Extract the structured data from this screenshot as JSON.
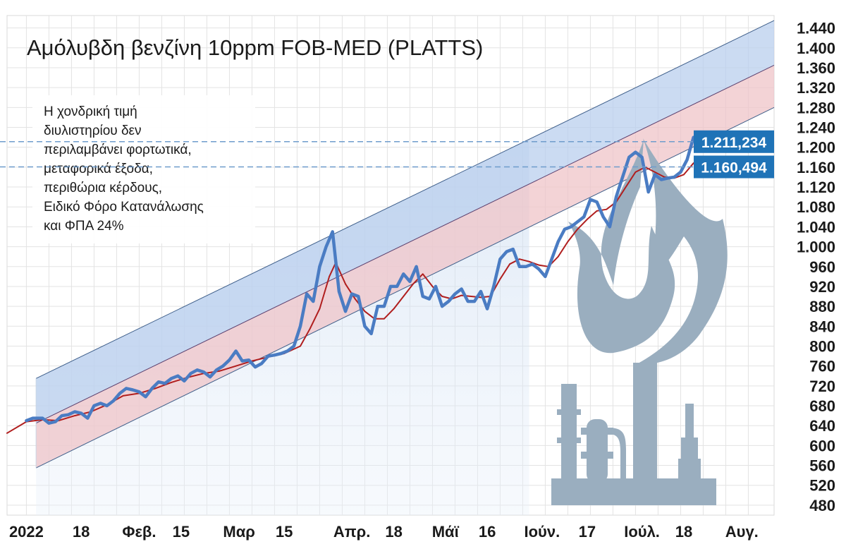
{
  "chart_data": {
    "type": "line",
    "title": "Αμόλυβδη βενζίνη 10ppm FOB-MED (PLATTS)",
    "note_lines": [
      "Η χονδρική τιμή",
      "διυλιστηρίου δεν",
      "περιλαμβάνει φορτωτικά,",
      "μεταφορικά έξοδα,",
      "περιθώρια κέρδους,",
      "Ειδικό Φόρο Κατανάλωσης",
      "και ΦΠΑ 24%"
    ],
    "y_ticks": [
      "1.440",
      "1.400",
      "1.360",
      "1.320",
      "1.280",
      "1.240",
      "1.200",
      "1.160",
      "1.120",
      "1.080",
      "1.040",
      "1.000",
      "960",
      "920",
      "880",
      "840",
      "800",
      "760",
      "720",
      "680",
      "640",
      "600",
      "560",
      "520",
      "480"
    ],
    "y_tick_values": [
      1440,
      1400,
      1360,
      1320,
      1280,
      1240,
      1200,
      1160,
      1120,
      1080,
      1040,
      1000,
      960,
      920,
      880,
      840,
      800,
      760,
      720,
      680,
      640,
      600,
      560,
      520,
      480
    ],
    "ylim": [
      460,
      1465
    ],
    "x_ticks": [
      "2022",
      "18",
      "Φεβ.",
      "15",
      "Μαρ",
      "15",
      "Απρ.",
      "18",
      "Μάϊ",
      "16",
      "Ιούν.",
      "17",
      "Ιούλ.",
      "18",
      "Αυγ."
    ],
    "x_tick_days": [
      0,
      17,
      35,
      48,
      66,
      80,
      101,
      114,
      130,
      143,
      160,
      174,
      191,
      204,
      222
    ],
    "xlim": [
      -6,
      232
    ],
    "callouts": [
      {
        "label": "1.211,234",
        "value": 1211.234
      },
      {
        "label": "1.160,494",
        "value": 1160.494
      }
    ],
    "channel": {
      "start_day": 3,
      "end_day": 232,
      "upper": [
        735,
        1455
      ],
      "middle": [
        645,
        1365
      ],
      "lower": [
        555,
        1280
      ]
    },
    "projection_end_day": 156,
    "series": [
      {
        "key": "price",
        "color": "#4a7cc3",
        "points": [
          [
            0,
            650
          ],
          [
            2,
            655
          ],
          [
            5,
            655
          ],
          [
            7,
            645
          ],
          [
            9,
            648
          ],
          [
            11,
            660
          ],
          [
            13,
            662
          ],
          [
            15,
            668
          ],
          [
            17,
            665
          ],
          [
            19,
            655
          ],
          [
            21,
            680
          ],
          [
            23,
            685
          ],
          [
            25,
            680
          ],
          [
            27,
            690
          ],
          [
            29,
            705
          ],
          [
            31,
            715
          ],
          [
            33,
            712
          ],
          [
            35,
            708
          ],
          [
            37,
            698
          ],
          [
            39,
            715
          ],
          [
            41,
            728
          ],
          [
            43,
            725
          ],
          [
            45,
            735
          ],
          [
            47,
            740
          ],
          [
            49,
            730
          ],
          [
            51,
            745
          ],
          [
            53,
            752
          ],
          [
            55,
            748
          ],
          [
            57,
            738
          ],
          [
            59,
            752
          ],
          [
            61,
            760
          ],
          [
            63,
            772
          ],
          [
            65,
            790
          ],
          [
            67,
            770
          ],
          [
            69,
            772
          ],
          [
            71,
            758
          ],
          [
            73,
            765
          ],
          [
            75,
            780
          ],
          [
            77,
            782
          ],
          [
            79,
            785
          ],
          [
            81,
            790
          ],
          [
            83,
            800
          ],
          [
            85,
            840
          ],
          [
            87,
            905
          ],
          [
            89,
            890
          ],
          [
            91,
            960
          ],
          [
            93,
            1000
          ],
          [
            95,
            1030
          ],
          [
            97,
            910
          ],
          [
            99,
            870
          ],
          [
            101,
            905
          ],
          [
            103,
            900
          ],
          [
            105,
            840
          ],
          [
            107,
            825
          ],
          [
            109,
            880
          ],
          [
            111,
            880
          ],
          [
            113,
            920
          ],
          [
            115,
            920
          ],
          [
            117,
            945
          ],
          [
            119,
            930
          ],
          [
            121,
            960
          ],
          [
            123,
            900
          ],
          [
            125,
            895
          ],
          [
            127,
            920
          ],
          [
            129,
            880
          ],
          [
            131,
            890
          ],
          [
            133,
            905
          ],
          [
            135,
            915
          ],
          [
            137,
            890
          ],
          [
            139,
            890
          ],
          [
            141,
            910
          ],
          [
            143,
            875
          ],
          [
            145,
            920
          ],
          [
            147,
            975
          ],
          [
            149,
            990
          ],
          [
            151,
            995
          ],
          [
            153,
            960
          ],
          [
            155,
            960
          ],
          [
            157,
            965
          ],
          [
            159,
            955
          ],
          [
            161,
            940
          ],
          [
            163,
            975
          ],
          [
            165,
            1010
          ],
          [
            167,
            1035
          ],
          [
            169,
            1040
          ],
          [
            171,
            1050
          ],
          [
            173,
            1060
          ],
          [
            175,
            1095
          ],
          [
            177,
            1090
          ],
          [
            179,
            1060
          ],
          [
            181,
            1040
          ],
          [
            183,
            1100
          ],
          [
            185,
            1140
          ],
          [
            187,
            1180
          ],
          [
            189,
            1190
          ],
          [
            191,
            1180
          ],
          [
            193,
            1110
          ],
          [
            195,
            1145
          ],
          [
            197,
            1135
          ],
          [
            199,
            1138
          ],
          [
            201,
            1140
          ],
          [
            203,
            1150
          ],
          [
            205,
            1175
          ],
          [
            207,
            1220
          ]
        ]
      },
      {
        "key": "average",
        "color": "#b01e1e",
        "points": [
          [
            -6,
            625
          ],
          [
            0,
            648
          ],
          [
            5,
            652
          ],
          [
            10,
            650
          ],
          [
            15,
            660
          ],
          [
            20,
            668
          ],
          [
            25,
            682
          ],
          [
            30,
            700
          ],
          [
            35,
            705
          ],
          [
            40,
            715
          ],
          [
            45,
            727
          ],
          [
            50,
            737
          ],
          [
            55,
            745
          ],
          [
            60,
            750
          ],
          [
            65,
            760
          ],
          [
            70,
            770
          ],
          [
            75,
            778
          ],
          [
            80,
            785
          ],
          [
            85,
            800
          ],
          [
            88,
            835
          ],
          [
            91,
            875
          ],
          [
            94,
            940
          ],
          [
            96,
            968
          ],
          [
            99,
            925
          ],
          [
            102,
            895
          ],
          [
            105,
            870
          ],
          [
            108,
            855
          ],
          [
            111,
            855
          ],
          [
            114,
            875
          ],
          [
            117,
            900
          ],
          [
            120,
            925
          ],
          [
            123,
            945
          ],
          [
            126,
            920
          ],
          [
            129,
            900
          ],
          [
            132,
            895
          ],
          [
            135,
            902
          ],
          [
            138,
            900
          ],
          [
            141,
            898
          ],
          [
            144,
            900
          ],
          [
            147,
            935
          ],
          [
            150,
            965
          ],
          [
            153,
            975
          ],
          [
            156,
            970
          ],
          [
            159,
            963
          ],
          [
            162,
            960
          ],
          [
            165,
            980
          ],
          [
            168,
            1010
          ],
          [
            171,
            1035
          ],
          [
            174,
            1055
          ],
          [
            177,
            1072
          ],
          [
            180,
            1075
          ],
          [
            183,
            1090
          ],
          [
            186,
            1120
          ],
          [
            189,
            1150
          ],
          [
            192,
            1160
          ],
          [
            195,
            1150
          ],
          [
            198,
            1140
          ],
          [
            201,
            1138
          ],
          [
            204,
            1145
          ],
          [
            207,
            1168
          ]
        ]
      }
    ],
    "grid": true
  }
}
